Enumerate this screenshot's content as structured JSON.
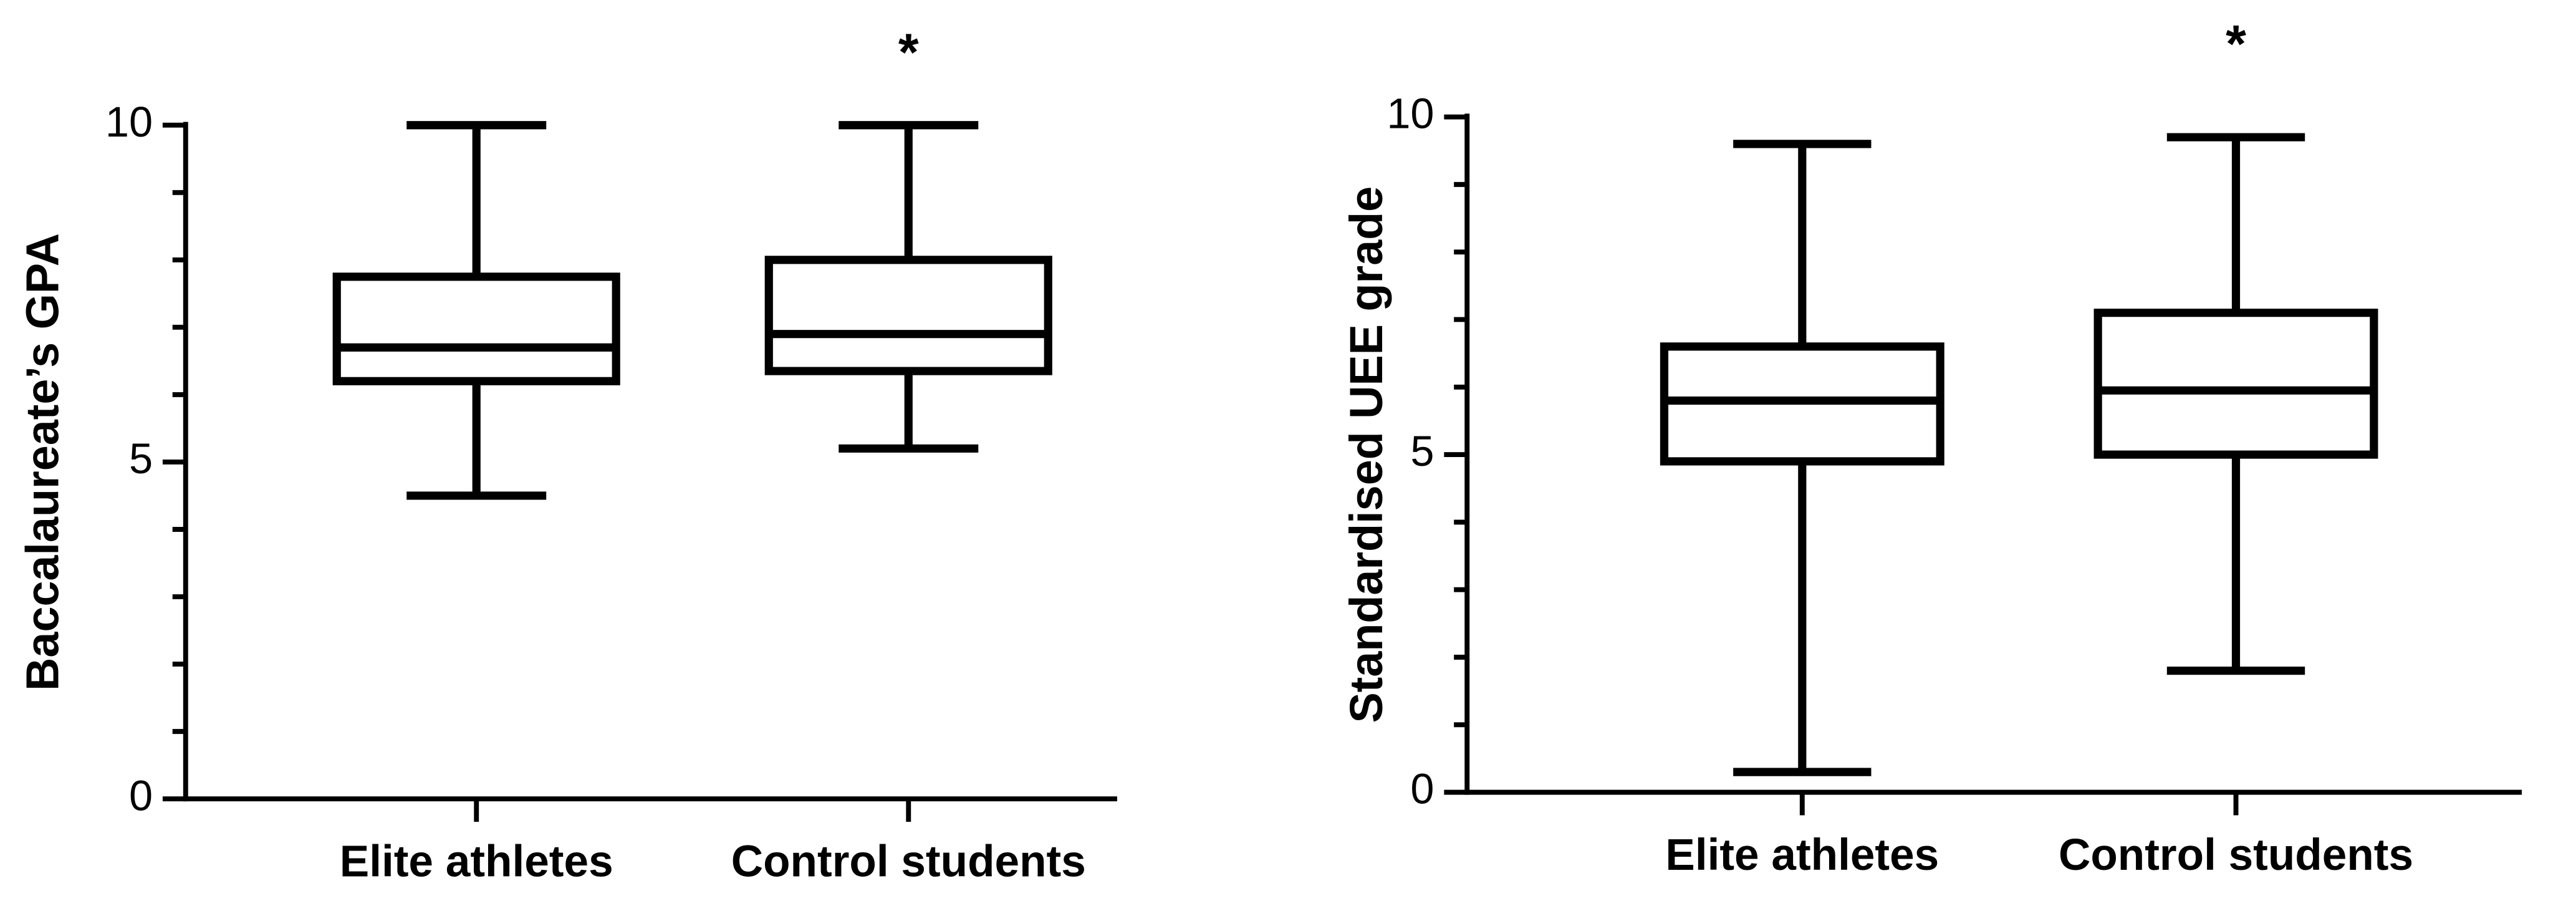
{
  "chart_data": [
    {
      "type": "box",
      "ylabel": "Baccalaureate’s GPA",
      "categories": [
        "Elite athletes",
        "Control students"
      ],
      "min": [
        4.5,
        5.2
      ],
      "q1": [
        6.2,
        6.35
      ],
      "median": [
        6.7,
        6.9
      ],
      "q3": [
        7.75,
        8.0
      ],
      "max": [
        10,
        10
      ],
      "annotations": [
        null,
        "*"
      ],
      "ylim": [
        0,
        10
      ],
      "yticks": [
        0,
        5,
        10
      ],
      "minor_yticks": [
        1,
        2,
        3,
        4,
        6,
        7,
        8,
        9
      ],
      "color": "#000000",
      "grid": false
    },
    {
      "type": "box",
      "ylabel": "Standardised UEE grade",
      "categories": [
        "Elite athletes",
        "Control students"
      ],
      "min": [
        0.3,
        1.8
      ],
      "q1": [
        4.9,
        5.0
      ],
      "median": [
        5.8,
        5.95
      ],
      "q3": [
        6.6,
        7.1
      ],
      "max": [
        9.6,
        9.7
      ],
      "annotations": [
        null,
        "*"
      ],
      "ylim": [
        0,
        10
      ],
      "yticks": [
        0,
        5,
        10
      ],
      "minor_yticks": [
        1,
        2,
        3,
        4,
        6,
        7,
        8,
        9
      ],
      "color": "#000000",
      "grid": false
    }
  ]
}
